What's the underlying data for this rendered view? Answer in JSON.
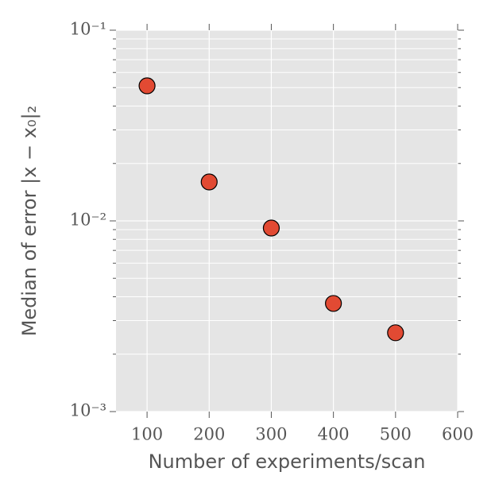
{
  "chart_data": {
    "type": "scatter",
    "xlabel": "Number of experiments/scan",
    "ylabel": "Median of error |x − x₀|₂",
    "series": [
      {
        "color": "#e24a33",
        "x": [
          100,
          200,
          300,
          400,
          500
        ],
        "values": [
          0.0511,
          0.016,
          0.00917,
          0.00369,
          0.00259
        ]
      }
    ],
    "xlim": [
      50,
      600
    ],
    "xticks": [
      100,
      200,
      300,
      400,
      500,
      600
    ],
    "ylim": [
      0.001,
      0.1
    ],
    "log_y": true,
    "yticks": [
      {
        "value": 0.001,
        "label": "10⁻³"
      },
      {
        "value": 0.01,
        "label": "10⁻²"
      },
      {
        "value": 0.1,
        "label": "10⁻¹"
      }
    ],
    "yticks_minor": [
      0.002,
      0.003,
      0.004,
      0.005,
      0.006,
      0.007,
      0.008,
      0.009,
      0.02,
      0.03,
      0.04,
      0.05,
      0.06,
      0.07,
      0.08,
      0.09
    ],
    "grid": true
  }
}
